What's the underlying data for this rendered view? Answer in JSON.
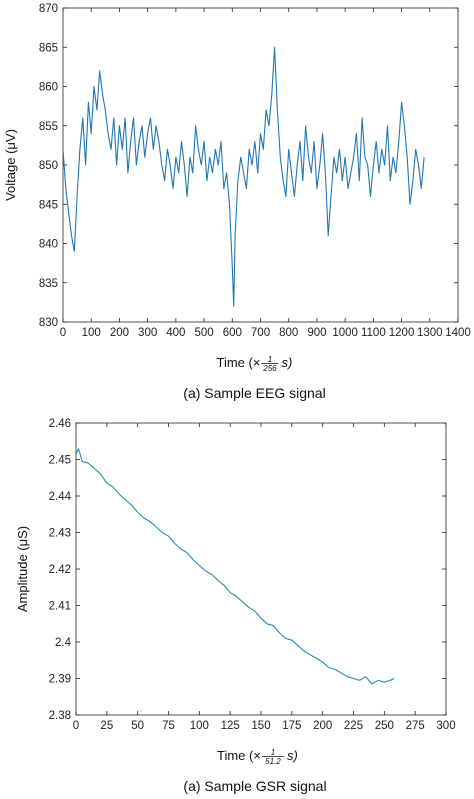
{
  "chart_data": [
    {
      "type": "line",
      "caption": "(a)   Sample EEG signal",
      "xlabel_prefix": "Time (×",
      "xlabel_num": "1",
      "xlabel_den": "256",
      "xlabel_suffix": "s)",
      "ylabel": "Voltage (μV)",
      "xlim": [
        0,
        1400
      ],
      "ylim": [
        830,
        870
      ],
      "xticks": [
        0,
        100,
        200,
        300,
        400,
        500,
        600,
        700,
        800,
        900,
        1000,
        1100,
        1200,
        1300,
        1400
      ],
      "yticks": [
        830,
        835,
        840,
        845,
        850,
        855,
        860,
        865,
        870
      ],
      "line_color": "#1f77b4",
      "series": [
        {
          "x": [
            0,
            10,
            20,
            30,
            40,
            50,
            60,
            70,
            80,
            90,
            100,
            110,
            120,
            130,
            140,
            150,
            160,
            170,
            180,
            190,
            200,
            210,
            220,
            230,
            240,
            250,
            260,
            270,
            280,
            290,
            300,
            310,
            320,
            330,
            340,
            350,
            360,
            370,
            380,
            390,
            400,
            410,
            420,
            430,
            440,
            450,
            460,
            470,
            480,
            490,
            500,
            510,
            520,
            530,
            540,
            550,
            560,
            570,
            580,
            590,
            600,
            605,
            610,
            620,
            630,
            640,
            650,
            660,
            670,
            680,
            690,
            700,
            710,
            720,
            730,
            740,
            750,
            760,
            770,
            780,
            790,
            800,
            810,
            820,
            830,
            840,
            850,
            860,
            870,
            880,
            890,
            900,
            910,
            920,
            930,
            940,
            950,
            960,
            970,
            980,
            990,
            1000,
            1010,
            1020,
            1030,
            1040,
            1050,
            1060,
            1070,
            1080,
            1090,
            1100,
            1110,
            1120,
            1130,
            1140,
            1150,
            1160,
            1170,
            1180,
            1190,
            1200,
            1210,
            1220,
            1230,
            1240,
            1250,
            1260,
            1270,
            1280
          ],
          "y": [
            852,
            847,
            844,
            841,
            839,
            846,
            852,
            856,
            850,
            858,
            854,
            860,
            857,
            862,
            859,
            857,
            854,
            852,
            856,
            850,
            855,
            852,
            856,
            849,
            853,
            856,
            850,
            853,
            855,
            851,
            854,
            856,
            852,
            855,
            853,
            850,
            848,
            852,
            850,
            847,
            851,
            849,
            853,
            850,
            846,
            851,
            849,
            855,
            852,
            850,
            853,
            848,
            851,
            849,
            852,
            850,
            853,
            847,
            849,
            845,
            837,
            832,
            841,
            848,
            851,
            849,
            847,
            852,
            850,
            853,
            849,
            854,
            852,
            857,
            855,
            859,
            865,
            857,
            851,
            848,
            846,
            852,
            849,
            846,
            850,
            853,
            848,
            855,
            851,
            849,
            853,
            847,
            850,
            854,
            849,
            841,
            846,
            851,
            849,
            852,
            848,
            851,
            847,
            849,
            851,
            854,
            848,
            856,
            851,
            850,
            846,
            850,
            853,
            849,
            852,
            850,
            855,
            848,
            851,
            849,
            853,
            858,
            855,
            851,
            845,
            848,
            852,
            850,
            847,
            851
          ]
        }
      ]
    },
    {
      "type": "line",
      "caption": "(a)   Sample GSR signal",
      "xlabel_prefix": "Time (×",
      "xlabel_num": "1",
      "xlabel_den": "51.2",
      "xlabel_suffix": "s)",
      "ylabel": "Amplitude (μS)",
      "xlim": [
        0,
        300
      ],
      "ylim": [
        2.38,
        2.46
      ],
      "xticks": [
        0,
        25,
        50,
        75,
        100,
        125,
        150,
        175,
        200,
        225,
        250,
        275,
        300
      ],
      "yticks": [
        2.38,
        2.39,
        2.4,
        2.41,
        2.42,
        2.43,
        2.44,
        2.45,
        2.46
      ],
      "ytick_labels": [
        "2.38",
        "2.39",
        "2.4",
        "2.41",
        "2.42",
        "2.43",
        "2.44",
        "2.45",
        "2.46"
      ],
      "line_color": "#1f8fb0",
      "series": [
        {
          "x": [
            0,
            2,
            5,
            10,
            15,
            20,
            25,
            30,
            35,
            40,
            45,
            50,
            55,
            60,
            65,
            70,
            75,
            80,
            85,
            90,
            95,
            100,
            105,
            110,
            115,
            120,
            125,
            130,
            135,
            140,
            145,
            150,
            155,
            160,
            165,
            170,
            175,
            180,
            185,
            190,
            195,
            200,
            205,
            210,
            215,
            220,
            225,
            230,
            235,
            240,
            245,
            250,
            255,
            258
          ],
          "y": [
            2.4515,
            2.453,
            2.4495,
            2.449,
            2.4475,
            2.446,
            2.4435,
            2.4425,
            2.4405,
            2.439,
            2.4375,
            2.4355,
            2.434,
            2.433,
            2.4315,
            2.43,
            2.429,
            2.427,
            2.4255,
            2.4245,
            2.4225,
            2.421,
            2.4195,
            2.4185,
            2.417,
            2.4155,
            2.4135,
            2.4125,
            2.411,
            2.4095,
            2.4085,
            2.4065,
            2.405,
            2.4045,
            2.4025,
            2.401,
            2.4005,
            2.399,
            2.3975,
            2.3965,
            2.3955,
            2.3945,
            2.393,
            2.3925,
            2.3915,
            2.3905,
            2.39,
            2.3895,
            2.3905,
            2.3885,
            2.3895,
            2.389,
            2.3895,
            2.39
          ]
        }
      ]
    }
  ]
}
